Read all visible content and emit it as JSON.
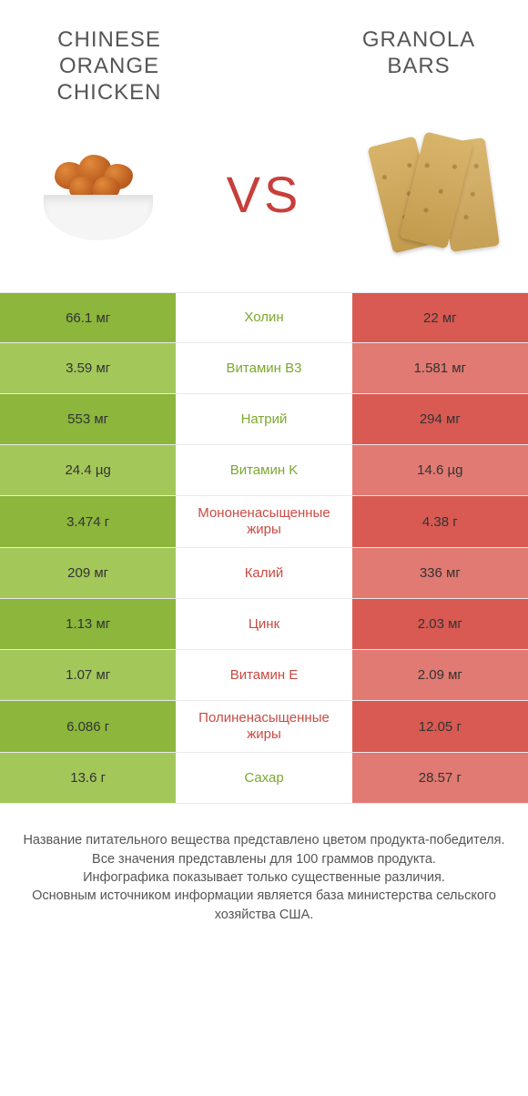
{
  "colors": {
    "green_dark": "#8cb63c",
    "green_light": "#a4c75a",
    "red_dark": "#d85a52",
    "red_light": "#e17a72",
    "nutrient_green": "#7ca82f",
    "nutrient_red": "#c94a42",
    "vs_color": "#c73f3a",
    "text_mid": "#555555"
  },
  "header": {
    "left_title": "Chinese Orange Chicken",
    "right_title": "Granola Bars",
    "vs": "VS"
  },
  "rows": [
    {
      "left": "66.1 мг",
      "name": "Холин",
      "right": "22 мг",
      "winner": "left"
    },
    {
      "left": "3.59 мг",
      "name": "Витамин B3",
      "right": "1.581 мг",
      "winner": "left"
    },
    {
      "left": "553 мг",
      "name": "Натрий",
      "right": "294 мг",
      "winner": "left"
    },
    {
      "left": "24.4 µg",
      "name": "Витамин K",
      "right": "14.6 µg",
      "winner": "left"
    },
    {
      "left": "3.474 г",
      "name": "Мононенасыщенные жиры",
      "right": "4.38 г",
      "winner": "right"
    },
    {
      "left": "209 мг",
      "name": "Калий",
      "right": "336 мг",
      "winner": "right"
    },
    {
      "left": "1.13 мг",
      "name": "Цинк",
      "right": "2.03 мг",
      "winner": "right"
    },
    {
      "left": "1.07 мг",
      "name": "Витамин E",
      "right": "2.09 мг",
      "winner": "right"
    },
    {
      "left": "6.086 г",
      "name": "Полиненасыщенные жиры",
      "right": "12.05 г",
      "winner": "right"
    },
    {
      "left": "13.6 г",
      "name": "Сахар",
      "right": "28.57 г",
      "winner": "left"
    }
  ],
  "footnote": {
    "line1": "Название питательного вещества представлено цветом продукта-победителя.",
    "line2": "Все значения представлены для 100 граммов продукта.",
    "line3": "Инфографика показывает только существенные различия.",
    "line4": "Основным источником информации является база министерства сельского хозяйства США."
  }
}
